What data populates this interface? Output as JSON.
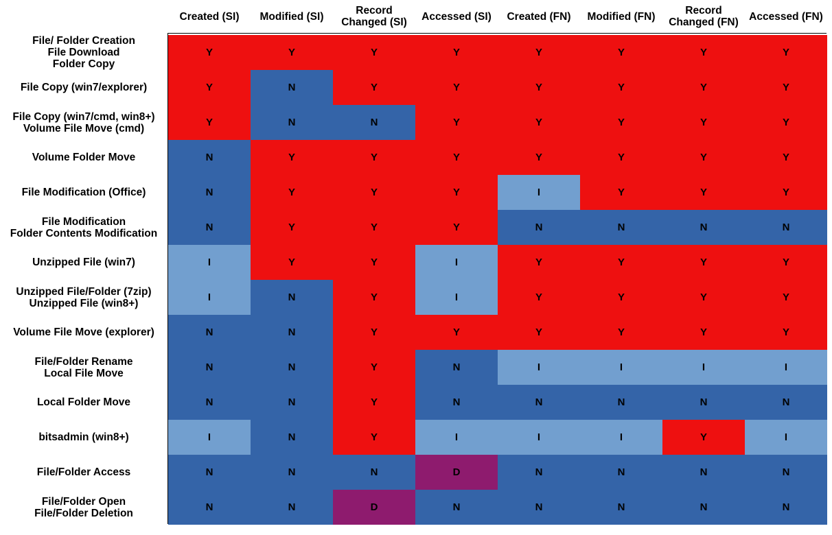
{
  "chart_data": {
    "type": "heatmap",
    "columns": [
      "Created (SI)",
      "Modified (SI)",
      "Record\nChanged (SI)",
      "Accessed (SI)",
      "Created (FN)",
      "Modified (FN)",
      "Record\nChanged (FN)",
      "Accessed (FN)"
    ],
    "rows": [
      {
        "label": "File/ Folder Creation\nFile Download\nFolder Copy",
        "values": [
          "Y",
          "Y",
          "Y",
          "Y",
          "Y",
          "Y",
          "Y",
          "Y"
        ]
      },
      {
        "label": "File Copy (win7/explorer)",
        "values": [
          "Y",
          "N",
          "Y",
          "Y",
          "Y",
          "Y",
          "Y",
          "Y"
        ]
      },
      {
        "label": "File Copy (win7/cmd, win8+)\nVolume File Move (cmd)",
        "values": [
          "Y",
          "N",
          "N",
          "Y",
          "Y",
          "Y",
          "Y",
          "Y"
        ]
      },
      {
        "label": "Volume Folder Move",
        "values": [
          "N",
          "Y",
          "Y",
          "Y",
          "Y",
          "Y",
          "Y",
          "Y"
        ]
      },
      {
        "label": "File Modification (Office)",
        "values": [
          "N",
          "Y",
          "Y",
          "Y",
          "I",
          "Y",
          "Y",
          "Y"
        ]
      },
      {
        "label": "File Modification\nFolder Contents Modification",
        "values": [
          "N",
          "Y",
          "Y",
          "Y",
          "N",
          "N",
          "N",
          "N"
        ]
      },
      {
        "label": "Unzipped File (win7)",
        "values": [
          "I",
          "Y",
          "Y",
          "I",
          "Y",
          "Y",
          "Y",
          "Y"
        ]
      },
      {
        "label": "Unzipped File/Folder (7zip)\nUnzipped File (win8+)",
        "values": [
          "I",
          "N",
          "Y",
          "I",
          "Y",
          "Y",
          "Y",
          "Y"
        ]
      },
      {
        "label": "Volume File Move (explorer)",
        "values": [
          "N",
          "N",
          "Y",
          "Y",
          "Y",
          "Y",
          "Y",
          "Y"
        ]
      },
      {
        "label": "File/Folder Rename\nLocal File Move",
        "values": [
          "N",
          "N",
          "Y",
          "N",
          "I",
          "I",
          "I",
          "I"
        ]
      },
      {
        "label": "Local Folder Move",
        "values": [
          "N",
          "N",
          "Y",
          "N",
          "N",
          "N",
          "N",
          "N"
        ]
      },
      {
        "label": "bitsadmin (win8+)",
        "values": [
          "I",
          "N",
          "Y",
          "I",
          "I",
          "I",
          "Y",
          "I"
        ]
      },
      {
        "label": "File/Folder Access",
        "values": [
          "N",
          "N",
          "N",
          "D",
          "N",
          "N",
          "N",
          "N"
        ]
      },
      {
        "label": "File/Folder Open\nFile/Folder Deletion",
        "values": [
          "N",
          "N",
          "D",
          "N",
          "N",
          "N",
          "N",
          "N"
        ]
      }
    ],
    "value_colors": {
      "Y": "#EE1010",
      "N": "#3464A8",
      "I": "#729FCF",
      "D": "#8E1B6E"
    }
  }
}
